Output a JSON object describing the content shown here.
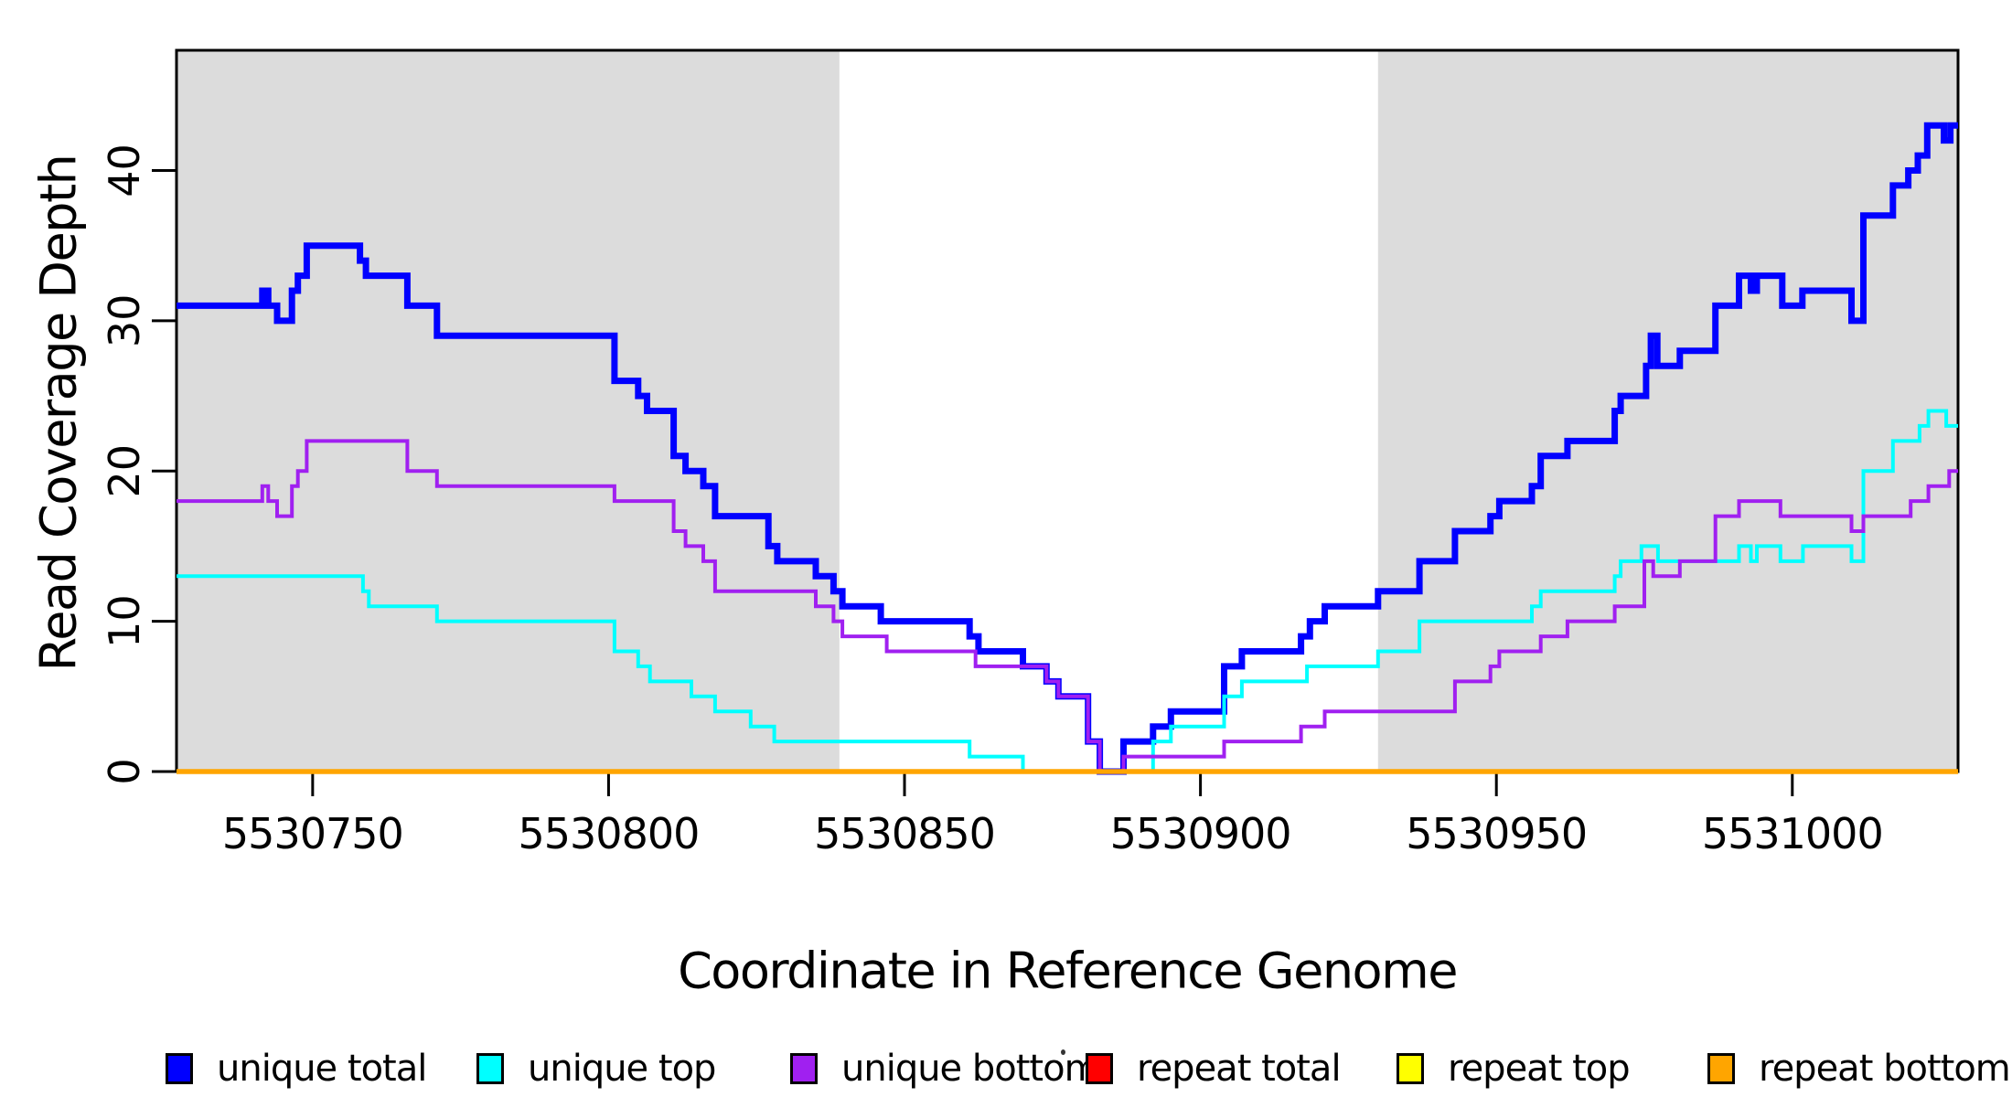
{
  "chart_data": {
    "type": "line",
    "subtype": "step-after",
    "title": "",
    "xlabel": "Coordinate in Reference Genome",
    "ylabel": "Read Coverage Depth",
    "xlim": [
      5530727,
      5531028
    ],
    "ylim": [
      0,
      48
    ],
    "x_ticks": [
      5530750,
      5530800,
      5530850,
      5530900,
      5530950,
      5531000
    ],
    "y_ticks": [
      0,
      10,
      20,
      30,
      40
    ],
    "grid": false,
    "plot_background": "#FFFFFF",
    "shaded_regions": [
      {
        "x0": 5530727,
        "x1": 5530839,
        "color": "#DCDCDC"
      },
      {
        "x0": 5530930,
        "x1": 5531028,
        "color": "#DCDCDC"
      }
    ],
    "series": [
      {
        "name": "unique total",
        "color": "#0000FF",
        "width": 7,
        "points": [
          [
            5530727,
            31
          ],
          [
            5530741.5,
            32
          ],
          [
            5530742.5,
            31
          ],
          [
            5530744,
            30
          ],
          [
            5530746.5,
            32
          ],
          [
            5530747.5,
            33
          ],
          [
            5530749,
            35
          ],
          [
            5530758,
            34
          ],
          [
            5530759,
            33
          ],
          [
            5530766,
            31
          ],
          [
            5530771,
            29
          ],
          [
            5530801,
            26
          ],
          [
            5530805,
            25
          ],
          [
            5530806.5,
            24
          ],
          [
            5530811,
            21
          ],
          [
            5530813,
            20
          ],
          [
            5530816,
            19
          ],
          [
            5530818,
            17
          ],
          [
            5530827,
            15
          ],
          [
            5530828.5,
            14
          ],
          [
            5530835,
            13
          ],
          [
            5530838,
            12
          ],
          [
            5530839.5,
            11
          ],
          [
            5530846,
            10
          ],
          [
            5530861,
            9
          ],
          [
            5530862.5,
            8
          ],
          [
            5530870,
            7
          ],
          [
            5530874,
            6
          ],
          [
            5530876,
            5
          ],
          [
            5530881,
            2
          ],
          [
            5530883,
            0
          ],
          [
            5530887,
            2
          ],
          [
            5530892,
            3
          ],
          [
            5530895,
            4
          ],
          [
            5530904,
            7
          ],
          [
            5530907,
            8
          ],
          [
            5530917,
            9
          ],
          [
            5530918.5,
            10
          ],
          [
            5530921,
            11
          ],
          [
            5530930,
            12
          ],
          [
            5530937,
            14
          ],
          [
            5530943,
            16
          ],
          [
            5530949,
            17
          ],
          [
            5530950.5,
            18
          ],
          [
            5530956,
            19
          ],
          [
            5530957.5,
            21
          ],
          [
            5530962,
            22
          ],
          [
            5530970,
            24
          ],
          [
            5530971,
            25
          ],
          [
            5530975.3,
            27
          ],
          [
            5530976.1,
            29
          ],
          [
            5530977.2,
            27
          ],
          [
            5530981,
            28
          ],
          [
            5530987,
            31
          ],
          [
            5530991,
            33
          ],
          [
            5530993,
            32
          ],
          [
            5530994,
            33
          ],
          [
            5530998.3,
            31
          ],
          [
            5531001.7,
            32
          ],
          [
            5531010,
            30
          ],
          [
            5531012,
            37
          ],
          [
            5531017,
            39
          ],
          [
            5531019.6,
            40
          ],
          [
            5531021.2,
            41
          ],
          [
            5531022.8,
            43
          ],
          [
            5531025.6,
            42
          ],
          [
            5531026.7,
            43
          ]
        ]
      },
      {
        "name": "unique top",
        "color": "#00FFFF",
        "width": 4,
        "points": [
          [
            5530727,
            13
          ],
          [
            5530758.5,
            12
          ],
          [
            5530759.5,
            11
          ],
          [
            5530771,
            10
          ],
          [
            5530801,
            8
          ],
          [
            5530805,
            7
          ],
          [
            5530807,
            6
          ],
          [
            5530814,
            5
          ],
          [
            5530818,
            4
          ],
          [
            5530824,
            3
          ],
          [
            5530828,
            2
          ],
          [
            5530861,
            1
          ],
          [
            5530870,
            0
          ],
          [
            5530892,
            2
          ],
          [
            5530895,
            3
          ],
          [
            5530904,
            5
          ],
          [
            5530907,
            6
          ],
          [
            5530918,
            7
          ],
          [
            5530930,
            8
          ],
          [
            5530937,
            10
          ],
          [
            5530956,
            11
          ],
          [
            5530957.5,
            12
          ],
          [
            5530970,
            13
          ],
          [
            5530971,
            14
          ],
          [
            5530974.5,
            15
          ],
          [
            5530977.3,
            14
          ],
          [
            5530991,
            15
          ],
          [
            5530993,
            14
          ],
          [
            5530994,
            15
          ],
          [
            5530998,
            14
          ],
          [
            5531001.8,
            15
          ],
          [
            5531010,
            14
          ],
          [
            5531012,
            20
          ],
          [
            5531017,
            22
          ],
          [
            5531021.5,
            23
          ],
          [
            5531023,
            24
          ],
          [
            5531026,
            23
          ]
        ]
      },
      {
        "name": "unique bottom",
        "color": "#A020F0",
        "width": 4,
        "points": [
          [
            5530727,
            18
          ],
          [
            5530741.5,
            19
          ],
          [
            5530742.5,
            18
          ],
          [
            5530744,
            17
          ],
          [
            5530746.5,
            19
          ],
          [
            5530747.5,
            20
          ],
          [
            5530749,
            22
          ],
          [
            5530766,
            20
          ],
          [
            5530771,
            19
          ],
          [
            5530801,
            18
          ],
          [
            5530811,
            16
          ],
          [
            5530813,
            15
          ],
          [
            5530816,
            14
          ],
          [
            5530818,
            12
          ],
          [
            5530835,
            11
          ],
          [
            5530838,
            10
          ],
          [
            5530839.5,
            9
          ],
          [
            5530847,
            8
          ],
          [
            5530862,
            7
          ],
          [
            5530874,
            6
          ],
          [
            5530876,
            5
          ],
          [
            5530881,
            2
          ],
          [
            5530883,
            0
          ],
          [
            5530887,
            1
          ],
          [
            5530904,
            2
          ],
          [
            5530917,
            3
          ],
          [
            5530921,
            4
          ],
          [
            5530943,
            6
          ],
          [
            5530949,
            7
          ],
          [
            5530950.5,
            8
          ],
          [
            5530957.5,
            9
          ],
          [
            5530962,
            10
          ],
          [
            5530970,
            11
          ],
          [
            5530975,
            14
          ],
          [
            5530976.5,
            13
          ],
          [
            5530981,
            14
          ],
          [
            5530987,
            17
          ],
          [
            5530991,
            18
          ],
          [
            5530998,
            17
          ],
          [
            5531010,
            16
          ],
          [
            5531012,
            17
          ],
          [
            5531020,
            18
          ],
          [
            5531023,
            19
          ],
          [
            5531026.5,
            20
          ]
        ]
      },
      {
        "name": "repeat total",
        "color": "#FF0000",
        "width": 4,
        "points": [
          [
            5530727,
            0
          ]
        ]
      },
      {
        "name": "repeat top",
        "color": "#FFFF00",
        "width": 4,
        "points": [
          [
            5530727,
            0
          ]
        ]
      },
      {
        "name": "repeat bottom",
        "color": "#FFA500",
        "width": 5.5,
        "points": [
          [
            5530727,
            0
          ]
        ]
      }
    ],
    "legend": {
      "position": "bottom",
      "items": [
        {
          "label": "unique total",
          "color": "#0000FF"
        },
        {
          "label": "unique top",
          "color": "#00FFFF"
        },
        {
          "label": "unique bottom",
          "color": "#A020F0"
        },
        {
          "label": "repeat total",
          "color": "#FF0000"
        },
        {
          "label": "repeat top",
          "color": "#FFFF00"
        },
        {
          "label": "repeat bottom",
          "color": "#FFA500"
        }
      ]
    }
  }
}
